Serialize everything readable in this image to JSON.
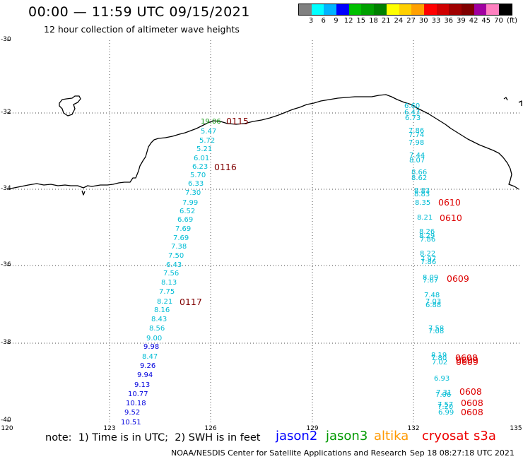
{
  "header": {
    "title": "00:00 — 11:59 UTC 09/15/2021",
    "subtitle": "12 hour collection of altimeter wave heights"
  },
  "colorbar": {
    "colors": [
      "#808080",
      "#00ffff",
      "#00b4ff",
      "#0000ff",
      "#00c000",
      "#00a000",
      "#008000",
      "#ffff00",
      "#ffd000",
      "#ffa000",
      "#ff0000",
      "#d00000",
      "#a00000",
      "#800000",
      "#a000a0",
      "#ff80c0",
      "#000000"
    ],
    "labels": [
      "3",
      "6",
      "9",
      "12",
      "15",
      "18",
      "21",
      "24",
      "27",
      "30",
      "33",
      "36",
      "39",
      "42",
      "45",
      "70"
    ],
    "unit": "(ft)"
  },
  "axes": {
    "lat_labels": [
      "-30",
      "-32",
      "-34",
      "-36",
      "-38",
      "-40"
    ],
    "lon_labels": [
      "120",
      "123",
      "126",
      "129",
      "132",
      "135"
    ]
  },
  "tracks": {
    "west": {
      "values": [
        {
          "v": "19.06",
          "c": "#119911"
        },
        {
          "v": "5.47",
          "c": "#00bcd4"
        },
        {
          "v": "5.72",
          "c": "#00bcd4"
        },
        {
          "v": "5.21",
          "c": "#00bcd4"
        },
        {
          "v": "6.01",
          "c": "#00bcd4"
        },
        {
          "v": "6.23",
          "c": "#00bcd4"
        },
        {
          "v": "5.70",
          "c": "#00bcd4"
        },
        {
          "v": "6.33",
          "c": "#00bcd4"
        },
        {
          "v": "7.30",
          "c": "#00bcd4"
        },
        {
          "v": "7.99",
          "c": "#00bcd4"
        },
        {
          "v": "6.52",
          "c": "#00bcd4"
        },
        {
          "v": "6.69",
          "c": "#00bcd4"
        },
        {
          "v": "7.69",
          "c": "#00bcd4"
        },
        {
          "v": "7.69",
          "c": "#00bcd4"
        },
        {
          "v": "7.38",
          "c": "#00bcd4"
        },
        {
          "v": "7.50",
          "c": "#00bcd4"
        },
        {
          "v": "6.43",
          "c": "#00bcd4"
        },
        {
          "v": "7.56",
          "c": "#00bcd4"
        },
        {
          "v": "8.13",
          "c": "#00bcd4"
        },
        {
          "v": "7.75",
          "c": "#00bcd4"
        },
        {
          "v": "8.21",
          "c": "#00bcd4"
        },
        {
          "v": "8.16",
          "c": "#00bcd4"
        },
        {
          "v": "8.43",
          "c": "#00bcd4"
        },
        {
          "v": "8.56",
          "c": "#00bcd4"
        },
        {
          "v": "9.00",
          "c": "#00bcd4"
        },
        {
          "v": "9.98",
          "c": "#0000dd"
        },
        {
          "v": "8.47",
          "c": "#00bcd4"
        },
        {
          "v": "9.26",
          "c": "#0000dd"
        },
        {
          "v": "9.94",
          "c": "#0000dd"
        },
        {
          "v": "9.13",
          "c": "#0000dd"
        },
        {
          "v": "10.77",
          "c": "#0000dd"
        },
        {
          "v": "10.18",
          "c": "#0000dd"
        },
        {
          "v": "9.52",
          "c": "#0000dd"
        },
        {
          "v": "10.51",
          "c": "#0000dd"
        }
      ],
      "times": [
        "0115",
        "0116",
        "0117"
      ]
    },
    "east": {
      "values": [
        {
          "v": "6.60",
          "c": "#00bcd4"
        },
        {
          "v": "6.43",
          "c": "#00bcd4"
        },
        {
          "v": "6.73",
          "c": "#00bcd4"
        },
        {
          "v": "7.86",
          "c": "#00bcd4"
        },
        {
          "v": "7.74",
          "c": "#00bcd4"
        },
        {
          "v": "7.98",
          "c": "#00bcd4"
        },
        {
          "v": "7.44",
          "c": "#00bcd4"
        },
        {
          "v": "8.07",
          "c": "#00bcd4"
        },
        {
          "v": "8.66",
          "c": "#00bcd4"
        },
        {
          "v": "8.62",
          "c": "#00bcd4"
        },
        {
          "v": "8.83",
          "c": "#00bcd4"
        },
        {
          "v": "8.83",
          "c": "#00bcd4"
        },
        {
          "v": "8.35",
          "c": "#00bcd4"
        },
        {
          "v": "8.21",
          "c": "#00bcd4"
        },
        {
          "v": "8.26",
          "c": "#00bcd4"
        },
        {
          "v": "8.29",
          "c": "#00bcd4"
        },
        {
          "v": "7.86",
          "c": "#00bcd4"
        },
        {
          "v": "8.22",
          "c": "#00bcd4"
        },
        {
          "v": "7.97",
          "c": "#00bcd4"
        },
        {
          "v": "7.86",
          "c": "#00bcd4"
        },
        {
          "v": "8.09",
          "c": "#00bcd4"
        },
        {
          "v": "7.67",
          "c": "#00bcd4"
        },
        {
          "v": "7.48",
          "c": "#00bcd4"
        },
        {
          "v": "7.03",
          "c": "#00bcd4"
        },
        {
          "v": "6.88",
          "c": "#00bcd4"
        },
        {
          "v": "7.58",
          "c": "#00bcd4"
        },
        {
          "v": "7.08",
          "c": "#00bcd4"
        },
        {
          "v": "8.19",
          "c": "#00bcd4"
        },
        {
          "v": "7.80",
          "c": "#00bcd4"
        },
        {
          "v": "7.02",
          "c": "#00bcd4"
        },
        {
          "v": "6.93",
          "c": "#00bcd4"
        },
        {
          "v": "7.31",
          "c": "#00bcd4"
        },
        {
          "v": "7.06",
          "c": "#00bcd4"
        },
        {
          "v": "7.57",
          "c": "#00bcd4"
        },
        {
          "v": "7.20",
          "c": "#00bcd4"
        },
        {
          "v": "6.99",
          "c": "#00bcd4"
        }
      ],
      "times": [
        "0610",
        "0610",
        "0609",
        "0608",
        "0609",
        "0609",
        "0608",
        "0608",
        "0608"
      ]
    }
  },
  "footer": {
    "note": "note:  1) Time is in UTC;  2) SWH is in feet",
    "legend": [
      {
        "name": "jason2",
        "color": "#0000ff"
      },
      {
        "name": "jason3",
        "color": "#009900"
      },
      {
        "name": "altika",
        "color": "#ff9900"
      },
      {
        "name": "cryosat",
        "color": "#ee0000"
      },
      {
        "name": "s3a",
        "color": "#ee0000"
      }
    ],
    "credit": "NOAA/NESDIS Center for Satellite Applications and Research",
    "stamp": "Sep 18 08:27:18 UTC 2021"
  }
}
